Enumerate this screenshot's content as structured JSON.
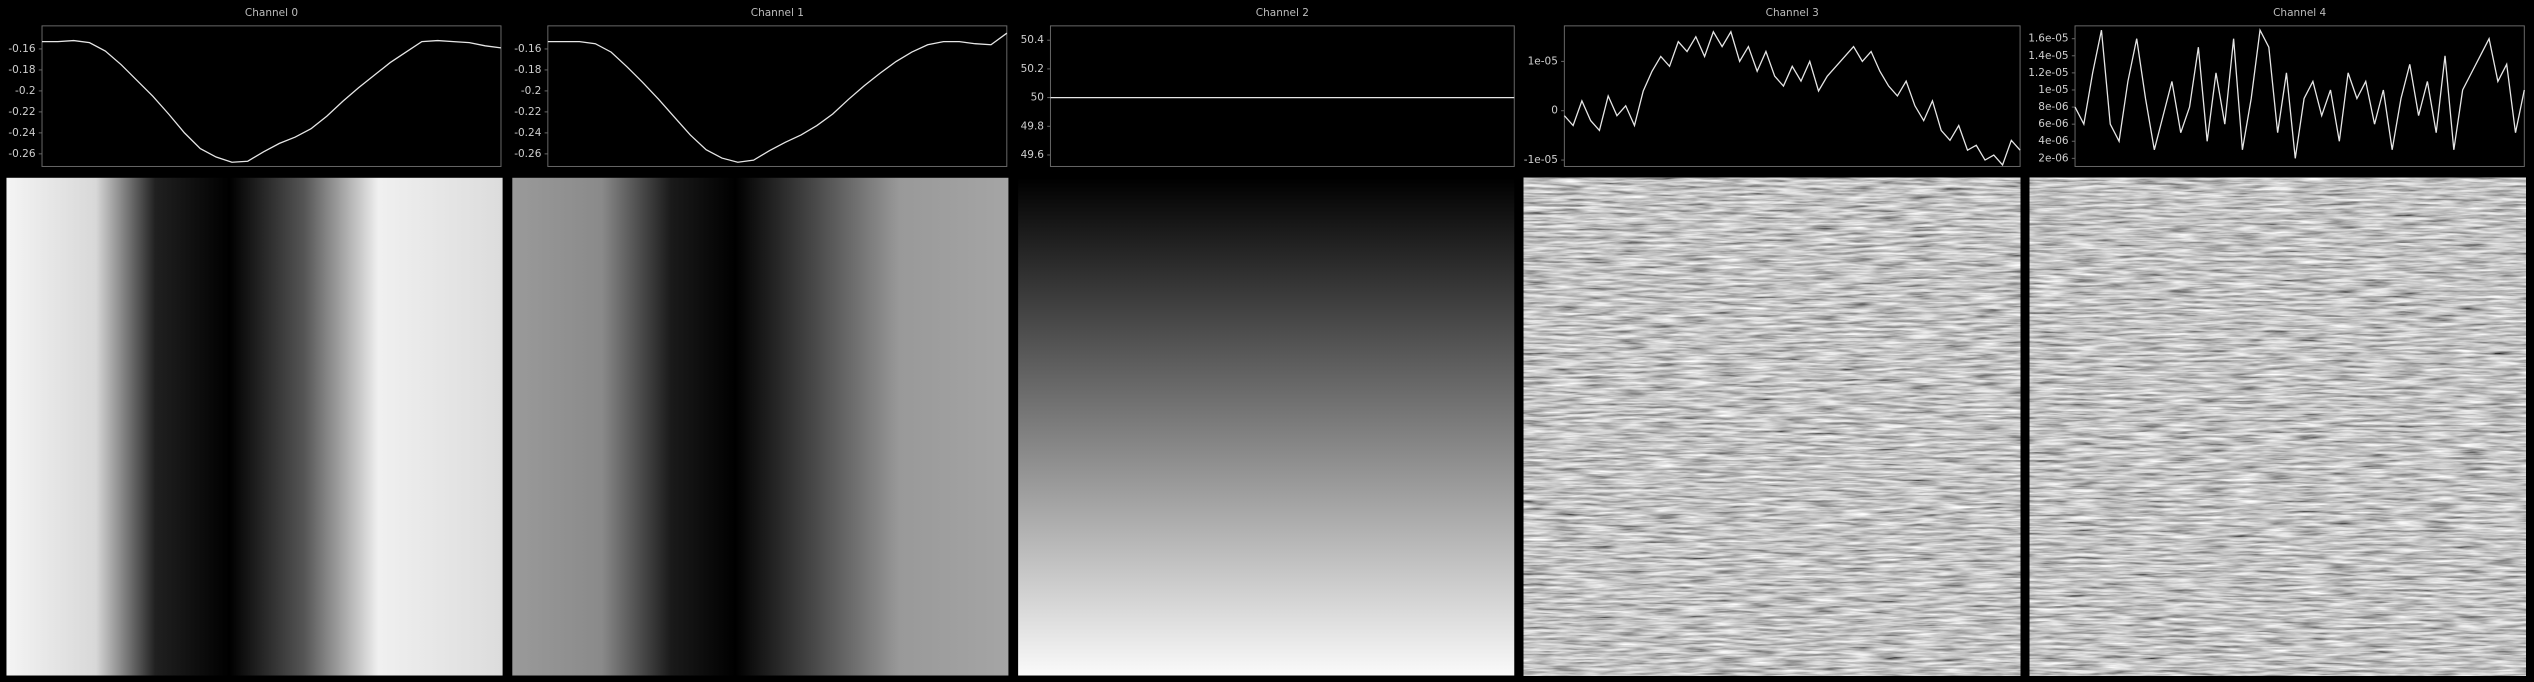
{
  "chart_data": [
    {
      "type": "line",
      "title": "Channel 0",
      "color": "#e6e6e6",
      "ylim": [
        -0.272,
        -0.138
      ],
      "yticks": [
        -0.16,
        -0.18,
        -0.2,
        -0.22,
        -0.24,
        -0.26
      ],
      "values": [
        -0.153,
        -0.153,
        -0.152,
        -0.154,
        -0.162,
        -0.175,
        -0.19,
        -0.205,
        -0.222,
        -0.24,
        -0.255,
        -0.263,
        -0.268,
        -0.267,
        -0.258,
        -0.25,
        -0.244,
        -0.236,
        -0.224,
        -0.21,
        -0.197,
        -0.185,
        -0.173,
        -0.163,
        -0.153,
        -0.152,
        -0.153,
        -0.154,
        -0.157,
        -0.159
      ]
    },
    {
      "type": "line",
      "title": "Channel 1",
      "color": "#e6e6e6",
      "ylim": [
        -0.272,
        -0.138
      ],
      "yticks": [
        -0.16,
        -0.18,
        -0.2,
        -0.22,
        -0.24,
        -0.26
      ],
      "values": [
        -0.153,
        -0.153,
        -0.153,
        -0.155,
        -0.163,
        -0.177,
        -0.192,
        -0.208,
        -0.225,
        -0.242,
        -0.256,
        -0.264,
        -0.268,
        -0.266,
        -0.257,
        -0.249,
        -0.242,
        -0.233,
        -0.222,
        -0.208,
        -0.195,
        -0.183,
        -0.172,
        -0.163,
        -0.156,
        -0.153,
        -0.153,
        -0.155,
        -0.156,
        -0.145
      ]
    },
    {
      "type": "line",
      "title": "Channel 2",
      "color": "#e6e6e6",
      "ylim": [
        49.52,
        50.5
      ],
      "yticks": [
        50.4,
        50.2,
        50,
        49.8,
        49.6
      ],
      "values": [
        50,
        50,
        50,
        50,
        50,
        50,
        50,
        50,
        50,
        50
      ]
    },
    {
      "type": "line",
      "title": "Channel 3",
      "color": "#e6e6e6",
      "ylim": [
        -1.13e-05,
        1.72e-05
      ],
      "yticks": [
        {
          "value": 1e-05,
          "label": "1e-05"
        },
        0,
        {
          "value": -1e-05,
          "label": "-1e-05"
        }
      ],
      "values": [
        -1e-06,
        -3e-06,
        2e-06,
        -2e-06,
        -4e-06,
        3e-06,
        -1e-06,
        1e-06,
        -3e-06,
        4e-06,
        8e-06,
        1.1e-05,
        9e-06,
        1.4e-05,
        1.2e-05,
        1.5e-05,
        1.1e-05,
        1.6e-05,
        1.3e-05,
        1.6e-05,
        1e-05,
        1.3e-05,
        8e-06,
        1.2e-05,
        7e-06,
        5e-06,
        9e-06,
        6e-06,
        1e-05,
        4e-06,
        7e-06,
        9e-06,
        1.1e-05,
        1.3e-05,
        1e-05,
        1.2e-05,
        8e-06,
        5e-06,
        3e-06,
        6e-06,
        1e-06,
        -2e-06,
        2e-06,
        -4e-06,
        -6e-06,
        -3e-06,
        -8e-06,
        -7e-06,
        -1e-05,
        -9e-06,
        -1.1e-05,
        -6e-06,
        -8e-06
      ]
    },
    {
      "type": "line",
      "title": "Channel 4",
      "color": "#e6e6e6",
      "ylim": [
        1.05e-06,
        1.75e-05
      ],
      "yticks": [
        {
          "value": 1.6e-05,
          "label": "1.6e-05"
        },
        {
          "value": 1.4e-05,
          "label": "1.4e-05"
        },
        {
          "value": 1.2e-05,
          "label": "1.2e-05"
        },
        {
          "value": 1e-05,
          "label": "1e-05"
        },
        {
          "value": 8e-06,
          "label": "8e-06"
        },
        {
          "value": 6e-06,
          "label": "6e-06"
        },
        {
          "value": 4e-06,
          "label": "4e-06"
        },
        {
          "value": 2e-06,
          "label": "2e-06"
        }
      ],
      "values": [
        8e-06,
        6e-06,
        1.2e-05,
        1.7e-05,
        6e-06,
        4e-06,
        1.1e-05,
        1.6e-05,
        9e-06,
        3e-06,
        7e-06,
        1.1e-05,
        5e-06,
        8e-06,
        1.5e-05,
        4e-06,
        1.2e-05,
        6e-06,
        1.6e-05,
        3e-06,
        9e-06,
        1.7e-05,
        1.5e-05,
        5e-06,
        1.2e-05,
        2e-06,
        9e-06,
        1.1e-05,
        7e-06,
        1e-05,
        4e-06,
        1.2e-05,
        9e-06,
        1.1e-05,
        6e-06,
        1e-05,
        3e-06,
        9e-06,
        1.3e-05,
        7e-06,
        1.1e-05,
        5e-06,
        1.4e-05,
        3e-06,
        1e-05,
        1.2e-05,
        1.4e-05,
        1.6e-05,
        1.1e-05,
        1.3e-05,
        5e-06,
        1e-05
      ]
    }
  ]
}
